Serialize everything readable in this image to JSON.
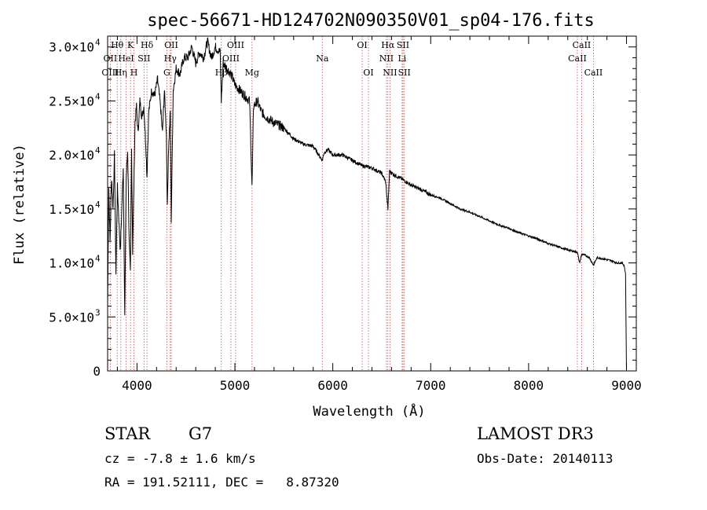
{
  "chart_data": {
    "type": "line",
    "title": "spec-56671-HD124702N090350V01_sp04-176.fits",
    "xlabel": "Wavelength (Å)",
    "ylabel": "Flux (relative)",
    "xlim": [
      3700,
      9100
    ],
    "ylim": [
      0,
      31000
    ],
    "x_ticks": [
      4000,
      5000,
      6000,
      7000,
      8000,
      9000
    ],
    "x_tick_labels": [
      "4000",
      "5000",
      "6000",
      "7000",
      "8000",
      "9000"
    ],
    "y_ticks": [
      {
        "value": 0,
        "mantissa": "0",
        "exp": ""
      },
      {
        "value": 5000,
        "mantissa": "5.0×10",
        "exp": "3"
      },
      {
        "value": 10000,
        "mantissa": "1.0×10",
        "exp": "4"
      },
      {
        "value": 15000,
        "mantissa": "1.5×10",
        "exp": "4"
      },
      {
        "value": 20000,
        "mantissa": "2.0×10",
        "exp": "4"
      },
      {
        "value": 25000,
        "mantissa": "2.5×10",
        "exp": "4"
      },
      {
        "value": 30000,
        "mantissa": "3.0×10",
        "exp": "4"
      }
    ],
    "spectrum": {
      "x": [
        3700,
        3712,
        3725,
        3740,
        3755,
        3770,
        3785,
        3800,
        3815,
        3830,
        3845,
        3860,
        3875,
        3890,
        3905,
        3920,
        3933,
        3945,
        3955,
        3968,
        3980,
        3995,
        4010,
        4030,
        4050,
        4070,
        4090,
        4102,
        4120,
        4150,
        4180,
        4210,
        4240,
        4260,
        4280,
        4300,
        4310,
        4320,
        4340,
        4350,
        4370,
        4400,
        4440,
        4480,
        4520,
        4560,
        4600,
        4640,
        4680,
        4720,
        4760,
        4800,
        4850,
        4861,
        4880,
        4920,
        4960,
        5000,
        5050,
        5100,
        5150,
        5175,
        5190,
        5230,
        5270,
        5320,
        5400,
        5500,
        5600,
        5700,
        5800,
        5893,
        5910,
        5950,
        6000,
        6100,
        6200,
        6300,
        6400,
        6500,
        6540,
        6563,
        6580,
        6620,
        6700,
        6800,
        6900,
        7000,
        7100,
        7200,
        7300,
        7400,
        7500,
        7600,
        7700,
        7800,
        7900,
        8000,
        8100,
        8200,
        8300,
        8400,
        8498,
        8520,
        8542,
        8580,
        8620,
        8662,
        8700,
        8750,
        8800,
        8850,
        8900,
        8950,
        8975,
        8990,
        9000,
        9003
      ],
      "y": [
        6000,
        17000,
        12000,
        18000,
        15000,
        20000,
        9000,
        17000,
        14000,
        11000,
        15000,
        19000,
        5000,
        18000,
        20500,
        12000,
        9000,
        21000,
        11000,
        17000,
        23000,
        24500,
        22000,
        25000,
        23500,
        24500,
        21000,
        18000,
        24000,
        26000,
        25500,
        27000,
        24500,
        22000,
        26000,
        22000,
        15000,
        20000,
        24000,
        14000,
        26000,
        28000,
        27500,
        29000,
        29000,
        30000,
        28500,
        29500,
        29000,
        30500,
        29000,
        30000,
        29500,
        25000,
        28500,
        28000,
        27500,
        26500,
        26000,
        25500,
        25000,
        17000,
        24500,
        25000,
        24000,
        23500,
        23000,
        22500,
        21500,
        21000,
        20800,
        19500,
        20200,
        20500,
        20000,
        20000,
        19500,
        19000,
        18800,
        18300,
        17500,
        15000,
        18500,
        18200,
        17800,
        17200,
        16800,
        16300,
        16000,
        15500,
        15000,
        14700,
        14300,
        13900,
        13500,
        13200,
        12800,
        12500,
        12200,
        11800,
        11500,
        11200,
        11000,
        10000,
        10800,
        10700,
        10500,
        9800,
        10500,
        10400,
        10300,
        10200,
        10000,
        10000,
        9800,
        9000,
        0,
        0
      ]
    },
    "lines": [
      {
        "label": "Hθ",
        "x": 3798,
        "row": 0
      },
      {
        "label": "OII",
        "x": 3727,
        "row": 1
      },
      {
        "label": "OIII",
        "x": 3727,
        "row": 2
      },
      {
        "label": "Hη",
        "x": 3835,
        "row": 2
      },
      {
        "label": "HeI",
        "x": 3889,
        "row": 1
      },
      {
        "label": "K",
        "x": 3934,
        "row": 0
      },
      {
        "label": "H",
        "x": 3969,
        "row": 2
      },
      {
        "label": "SII",
        "x": 4072,
        "row": 1
      },
      {
        "label": "Hδ",
        "x": 4102,
        "row": 0
      },
      {
        "label": "OII",
        "x": 4350,
        "row": 0
      },
      {
        "label": "Hγ",
        "x": 4340,
        "row": 1
      },
      {
        "label": "G",
        "x": 4305,
        "row": 2
      },
      {
        "label": "Hβ",
        "x": 4861,
        "row": 2
      },
      {
        "label": "OIII",
        "x": 5007,
        "row": 0
      },
      {
        "label": "OIII",
        "x": 4959,
        "row": 1
      },
      {
        "label": "Mg",
        "x": 5175,
        "row": 2
      },
      {
        "label": "Na",
        "x": 5893,
        "row": 1
      },
      {
        "label": "OI",
        "x": 6300,
        "row": 0
      },
      {
        "label": "OI",
        "x": 6364,
        "row": 2
      },
      {
        "label": "Hα",
        "x": 6563,
        "row": 0
      },
      {
        "label": "NII",
        "x": 6548,
        "row": 1
      },
      {
        "label": "NII",
        "x": 6584,
        "row": 2
      },
      {
        "label": "SII",
        "x": 6717,
        "row": 0
      },
      {
        "label": "Li",
        "x": 6708,
        "row": 1
      },
      {
        "label": "SII",
        "x": 6731,
        "row": 2
      },
      {
        "label": "CaII",
        "x": 8542,
        "row": 0
      },
      {
        "label": "CaII",
        "x": 8498,
        "row": 1
      },
      {
        "label": "CaII",
        "x": 8662,
        "row": 2
      }
    ]
  },
  "info": {
    "class_label": "STAR",
    "subclass_label": "G7",
    "survey": "LAMOST DR3",
    "cz": "cz = -7.8 ± 1.6 km/s",
    "obs_date": "Obs-Date: 20140113",
    "radec": "RA = 191.52111, DEC =   8.87320"
  },
  "colors": {
    "line": "#000000",
    "marker": "#c0504d",
    "text": "#000000"
  }
}
